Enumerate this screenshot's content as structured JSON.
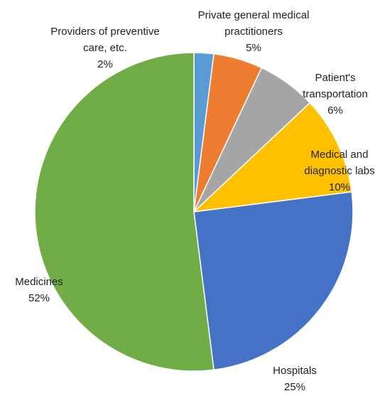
{
  "chart_data": {
    "type": "pie",
    "categories": [
      "Providers of preventive\ncare, etc.",
      "Private general medical\npractitioners",
      "Patient's\ntransportation",
      "Medical and\ndiagnostic labs",
      "Hospitals",
      "Medicines"
    ],
    "values": [
      2,
      5,
      6,
      10,
      25,
      52
    ],
    "value_labels": [
      "2%",
      "5%",
      "6%",
      "10%",
      "25%",
      "52%"
    ],
    "colors": [
      "#5b9bd5",
      "#ed7d31",
      "#a5a5a5",
      "#ffc000",
      "#4472c4",
      "#70ad47"
    ]
  }
}
